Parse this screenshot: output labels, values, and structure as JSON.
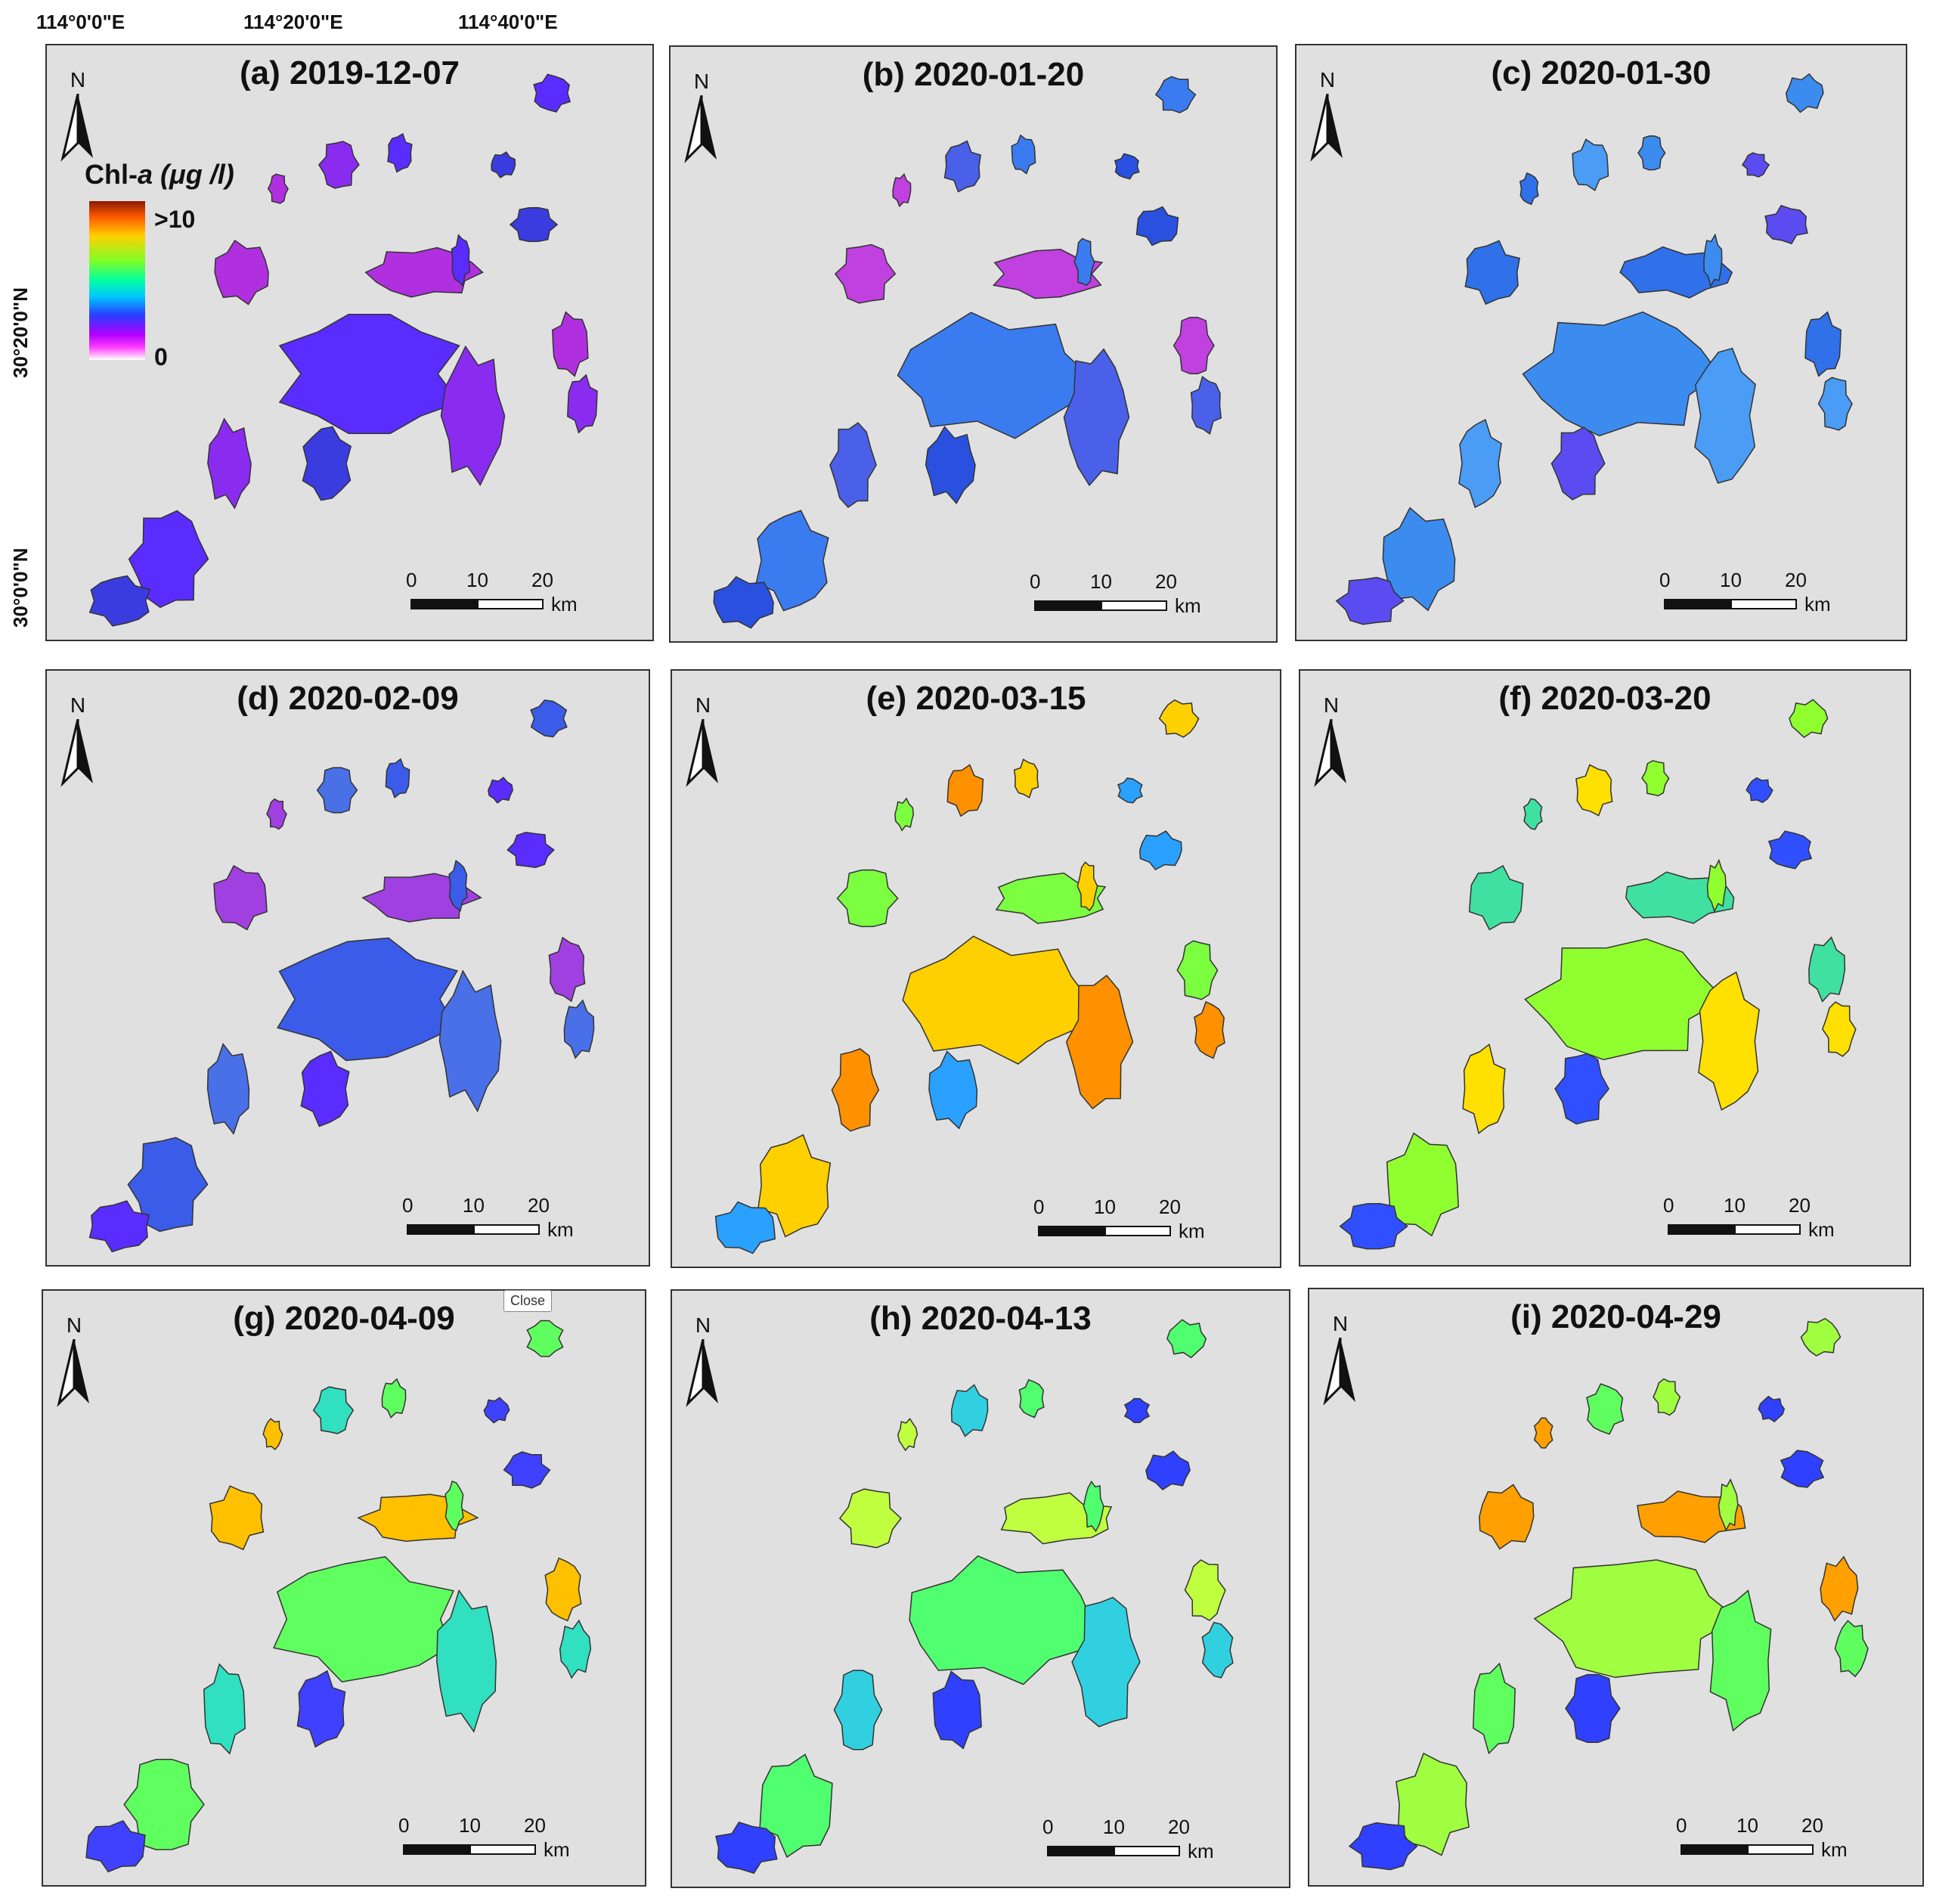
{
  "axes": {
    "top": [
      "114°0'0\"E",
      "114°20'0\"E",
      "114°40'0\"E"
    ],
    "left": [
      "30°20'0\"N",
      "30°0'0\"N"
    ]
  },
  "legend": {
    "title": "Chl-",
    "title_italic": "a (μg /l)",
    "max": ">10",
    "min": "0"
  },
  "north_label": "N",
  "scale": {
    "l0": "0",
    "l1": "10",
    "l2": "20",
    "unit": "km"
  },
  "tooltip": "Close",
  "panels": [
    {
      "title": "(a) 2019-12-07",
      "palette": [
        "#5a2cff",
        "#8a2cf0",
        "#b030e0",
        "#3a3ce0"
      ]
    },
    {
      "title": "(b) 2020-01-20",
      "palette": [
        "#3a7cf0",
        "#4a60e8",
        "#c040e0",
        "#2a50e0"
      ]
    },
    {
      "title": "(c) 2020-01-30",
      "palette": [
        "#3c8cf0",
        "#4a9cf5",
        "#3070e8",
        "#5a4cf0"
      ]
    },
    {
      "title": "(d) 2020-02-09",
      "palette": [
        "#3a5ce8",
        "#4a70e8",
        "#a040e0",
        "#5a2cff"
      ]
    },
    {
      "title": "(e) 2020-03-15",
      "palette": [
        "#ffd000",
        "#ff9000",
        "#7cff40",
        "#2aa0ff"
      ]
    },
    {
      "title": "(f) 2020-03-20",
      "palette": [
        "#90ff30",
        "#ffe000",
        "#40e0a0",
        "#3050ff"
      ]
    },
    {
      "title": "(g) 2020-04-09",
      "palette": [
        "#60ff60",
        "#30e0c0",
        "#ffc000",
        "#4040ff"
      ]
    },
    {
      "title": "(h) 2020-04-13",
      "palette": [
        "#50ff70",
        "#30d0e0",
        "#c0ff40",
        "#3040ff"
      ]
    },
    {
      "title": "(i) 2020-04-29",
      "palette": [
        "#a0ff40",
        "#60ff60",
        "#ffa000",
        "#3040ff"
      ]
    }
  ]
}
